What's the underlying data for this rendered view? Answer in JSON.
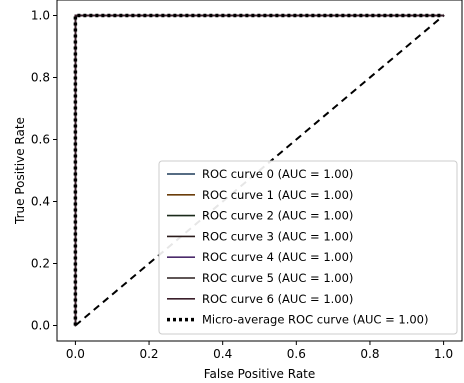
{
  "chart_data": {
    "type": "line",
    "title": "",
    "xlabel": "False Positive Rate",
    "ylabel": "True Positive Rate",
    "xlim": [
      -0.05,
      1.05
    ],
    "ylim": [
      -0.05,
      1.05
    ],
    "xticks": [
      "0.0",
      "0.2",
      "0.4",
      "0.6",
      "0.8",
      "1.0"
    ],
    "yticks": [
      "0.0",
      "0.2",
      "0.4",
      "0.6",
      "0.8",
      "1.0"
    ],
    "grid": false,
    "legend_position": "lower right",
    "series": [
      {
        "name": "ROC curve 0 (AUC = 1.00)",
        "x": [
          0,
          0,
          1
        ],
        "y": [
          0,
          1,
          1
        ],
        "color": "#1f3b5a",
        "style": "solid"
      },
      {
        "name": "ROC curve 1 (AUC = 1.00)",
        "x": [
          0,
          0,
          1
        ],
        "y": [
          0,
          1,
          1
        ],
        "color": "#6b3d0a",
        "style": "solid"
      },
      {
        "name": "ROC curve 2 (AUC = 1.00)",
        "x": [
          0,
          0,
          1
        ],
        "y": [
          0,
          1,
          1
        ],
        "color": "#1a2a1a",
        "style": "solid"
      },
      {
        "name": "ROC curve 3 (AUC = 1.00)",
        "x": [
          0,
          0,
          1
        ],
        "y": [
          0,
          1,
          1
        ],
        "color": "#2a1a1a",
        "style": "solid"
      },
      {
        "name": "ROC curve 4 (AUC = 1.00)",
        "x": [
          0,
          0,
          1
        ],
        "y": [
          0,
          1,
          1
        ],
        "color": "#4b2a6b",
        "style": "solid"
      },
      {
        "name": "ROC curve 5 (AUC = 1.00)",
        "x": [
          0,
          0,
          1
        ],
        "y": [
          0,
          1,
          1
        ],
        "color": "#2a1f1f",
        "style": "solid"
      },
      {
        "name": "ROC curve 6 (AUC = 1.00)",
        "x": [
          0,
          0,
          1
        ],
        "y": [
          0,
          1,
          1
        ],
        "color": "#3a1f2a",
        "style": "solid"
      },
      {
        "name": "Micro-average ROC curve (AUC = 1.00)",
        "x": [
          0,
          0,
          1
        ],
        "y": [
          0,
          1,
          1
        ],
        "color": "#000000",
        "style": "dotted"
      }
    ],
    "reference_line": {
      "x": [
        0,
        1
      ],
      "y": [
        0,
        1
      ],
      "color": "#000000",
      "style": "dashed"
    }
  }
}
